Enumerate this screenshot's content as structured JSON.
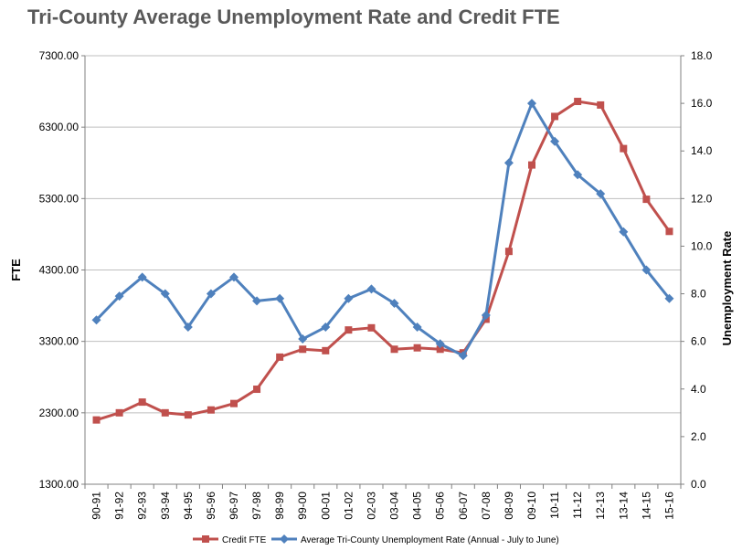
{
  "chart_data": {
    "type": "line",
    "title": "Tri-County Average Unemployment Rate and Credit FTE",
    "ylabel_left": "FTE",
    "ylabel_right": "Unemployment Rate",
    "y_left_lim": [
      1300,
      7300
    ],
    "y_right_lim": [
      0,
      18
    ],
    "y_left_ticks": [
      "1300.00",
      "2300.00",
      "3300.00",
      "4300.00",
      "5300.00",
      "6300.00",
      "7300.00"
    ],
    "y_right_ticks": [
      "0.0",
      "2.0",
      "4.0",
      "6.0",
      "8.0",
      "10.0",
      "12.0",
      "14.0",
      "16.0",
      "18.0"
    ],
    "categories": [
      "90-91",
      "91-92",
      "92-93",
      "93-94",
      "94-95",
      "95-96",
      "96-97",
      "97-98",
      "98-99",
      "99-00",
      "00-01",
      "01-02",
      "02-03",
      "03-04",
      "04-05",
      "05-06",
      "06-07",
      "07-08",
      "08-09",
      "09-10",
      "10-11",
      "11-12",
      "12-13",
      "13-14",
      "14-15",
      "15-16"
    ],
    "series": [
      {
        "name": "Credit FTE",
        "axis": "left",
        "color": "#C0504D",
        "marker": "square",
        "values": [
          2200,
          2300,
          2450,
          2300,
          2270,
          2340,
          2430,
          2630,
          3080,
          3190,
          3170,
          3460,
          3490,
          3190,
          3210,
          3190,
          3140,
          3610,
          4560,
          5770,
          6450,
          6660,
          6610,
          6000,
          5290,
          4840
        ]
      },
      {
        "name": "Average Tri-County Unemployment Rate (Annual - July to June)",
        "axis": "right",
        "color": "#4F81BD",
        "marker": "diamond",
        "values": [
          6.9,
          7.9,
          8.7,
          8.0,
          6.6,
          8.0,
          8.7,
          7.7,
          7.8,
          6.1,
          6.6,
          7.8,
          8.2,
          7.6,
          6.6,
          5.9,
          5.4,
          7.1,
          13.5,
          16.0,
          14.4,
          13.0,
          12.2,
          10.6,
          9.0,
          7.8
        ]
      }
    ],
    "grid": true,
    "legend_position": "bottom"
  },
  "colors": {
    "grid": "#BFBFBF",
    "axis": "#808080",
    "title": "#595959"
  }
}
